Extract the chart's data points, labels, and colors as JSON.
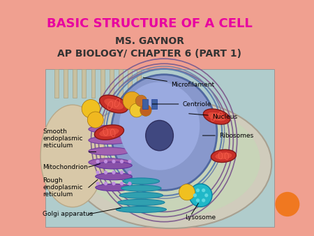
{
  "title_line1": "BASIC STRUCTURE OF A CELL",
  "title_line2": "MS. GAYNOR",
  "title_line3": "AP BIOLOGY/ CHAPTER 6 (PART 1)",
  "title_color": "#E800A0",
  "subtitle_color": "#333333",
  "background_color": "#FFFFFF",
  "border_color": "#F0A090",
  "orange_circle_color": "#F07820",
  "cell_bg_color": "#A8C8CC",
  "cell_outer_color": "#D8D0B8",
  "cell_inner_color": "#C0D8C0",
  "nucleus_color": "#7080CC",
  "nucleolus_color": "#4050A0",
  "mito_color": "#CC3030",
  "golgi_color": "#40B0C0",
  "er_color": "#9060B0",
  "vesicle_color": "#F0C030",
  "lyso_color": "#20B0B8"
}
